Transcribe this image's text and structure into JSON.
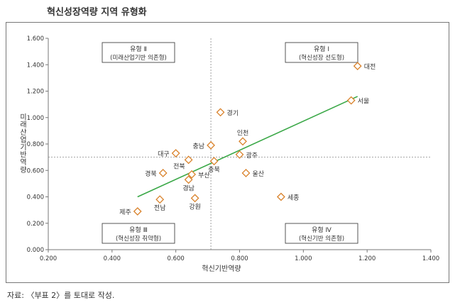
{
  "title": "혁신성장역량 지역 유형화",
  "source_note": "자료: 〈부표 2〉를 토대로 작성.",
  "colors": {
    "marker": "#d9822b",
    "trendline": "#3aa847",
    "axis": "#777777",
    "divider": "#888888",
    "text": "#333333"
  },
  "chart_data": {
    "type": "scatter",
    "title": "",
    "xlabel": "혁신기반역량",
    "ylabel": "미래산업기반역량",
    "xlim": [
      0.2,
      1.4
    ],
    "ylim": [
      0.0,
      1.6
    ],
    "x_ticks": [
      "0.200",
      "0.400",
      "0.600",
      "0.800",
      "1.000",
      "1.200",
      "1.400"
    ],
    "y_ticks": [
      "0.000",
      "0.200",
      "0.400",
      "0.600",
      "0.800",
      "1.000",
      "1.200",
      "1.400",
      "1.600"
    ],
    "grid": false,
    "divider_x": 0.71,
    "divider_y": 0.7,
    "points": [
      {
        "label": "대전",
        "x": 1.17,
        "y": 1.39,
        "label_side": "right"
      },
      {
        "label": "서울",
        "x": 1.15,
        "y": 1.13,
        "label_side": "right"
      },
      {
        "label": "경기",
        "x": 0.74,
        "y": 1.04,
        "label_side": "right"
      },
      {
        "label": "인천",
        "x": 0.81,
        "y": 0.82,
        "label_side": "top"
      },
      {
        "label": "충남",
        "x": 0.71,
        "y": 0.79,
        "label_side": "left"
      },
      {
        "label": "대구",
        "x": 0.6,
        "y": 0.73,
        "label_side": "left"
      },
      {
        "label": "광주",
        "x": 0.8,
        "y": 0.72,
        "label_side": "right"
      },
      {
        "label": "전북",
        "x": 0.64,
        "y": 0.68,
        "label_side": "bottomleft"
      },
      {
        "label": "충북",
        "x": 0.72,
        "y": 0.67,
        "label_side": "bottom"
      },
      {
        "label": "경북",
        "x": 0.56,
        "y": 0.58,
        "label_side": "left"
      },
      {
        "label": "울산",
        "x": 0.82,
        "y": 0.58,
        "label_side": "right"
      },
      {
        "label": "부산",
        "x": 0.65,
        "y": 0.57,
        "label_side": "right"
      },
      {
        "label": "경남",
        "x": 0.64,
        "y": 0.53,
        "label_side": "bottom"
      },
      {
        "label": "세종",
        "x": 0.93,
        "y": 0.4,
        "label_side": "right"
      },
      {
        "label": "전남",
        "x": 0.55,
        "y": 0.38,
        "label_side": "bottom"
      },
      {
        "label": "강원",
        "x": 0.66,
        "y": 0.39,
        "label_side": "bottom"
      },
      {
        "label": "제주",
        "x": 0.48,
        "y": 0.29,
        "label_side": "left"
      }
    ],
    "trendline": {
      "x": [
        0.48,
        1.17
      ],
      "y": [
        0.4,
        1.16
      ]
    },
    "quadrants": [
      {
        "name": "유형 Ⅱ",
        "desc": "(미래산업기반 의존형)",
        "position": "top-left"
      },
      {
        "name": "유형 Ⅰ",
        "desc": "(혁신성장 선도형)",
        "position": "top-right"
      },
      {
        "name": "유형 Ⅲ",
        "desc": "(혁신성장 취약형)",
        "position": "bottom-left"
      },
      {
        "name": "유형 Ⅳ",
        "desc": "(혁신기반 의존형)",
        "position": "bottom-right"
      }
    ]
  }
}
